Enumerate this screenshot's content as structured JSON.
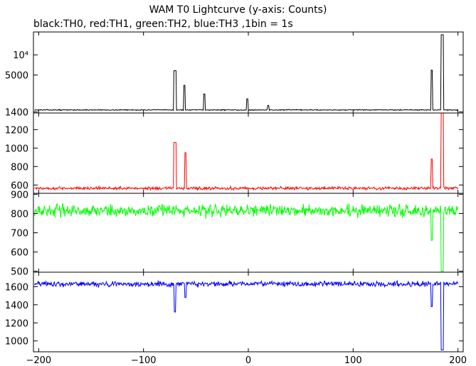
{
  "chart_data": {
    "title": "WAM T0 Lightcurve (y-axis: Counts)",
    "subtitle": "black:TH0, red:TH1, green:TH2, blue:TH3 ,1bin = 1s",
    "type": "line",
    "xlim": [
      -205,
      205
    ],
    "x_ticks": [
      -200,
      -100,
      0,
      100,
      200
    ],
    "x_tick_labels": [
      "−200",
      "−100",
      "0",
      "100",
      "200"
    ],
    "bin_seconds": 1,
    "grid": false,
    "panels": [
      {
        "series_name": "TH0",
        "color": "#000000",
        "yscale": "log",
        "ylim": [
          1350,
          22000
        ],
        "y_ticks": [
          1400,
          5000,
          10000
        ],
        "y_tick_labels": [
          "1400",
          "5000",
          "10⁴"
        ],
        "baseline": 1500,
        "noise": 20,
        "peaks": [
          {
            "x": -70,
            "y": 5800,
            "w": 2
          },
          {
            "x": -61,
            "y": 3500,
            "w": 1
          },
          {
            "x": -42,
            "y": 2600,
            "w": 1
          },
          {
            "x": -1,
            "y": 2200,
            "w": 1
          },
          {
            "x": 19,
            "y": 1750,
            "w": 1
          },
          {
            "x": 175,
            "y": 5900,
            "w": 1
          },
          {
            "x": 185,
            "y": 20000,
            "w": 2
          }
        ]
      },
      {
        "series_name": "TH1",
        "color": "#ff0000",
        "yscale": "linear",
        "ylim": [
          510,
          1380
        ],
        "y_ticks": [
          600,
          800,
          1000,
          1200
        ],
        "y_tick_labels": [
          "600",
          "800",
          "1000",
          "1200"
        ],
        "baseline": 565,
        "noise": 13,
        "peaks": [
          {
            "x": -70,
            "y": 1060,
            "w": 2
          },
          {
            "x": -60,
            "y": 950,
            "w": 1
          },
          {
            "x": 175,
            "y": 880,
            "w": 1
          },
          {
            "x": 185,
            "y": 1380,
            "w": 2
          }
        ]
      },
      {
        "series_name": "TH2",
        "color": "#00ff00",
        "yscale": "linear",
        "ylim": [
          495,
          905
        ],
        "y_ticks": [
          500,
          600,
          700,
          800,
          900
        ],
        "y_tick_labels": [
          "500",
          "600",
          "700",
          "800",
          "900"
        ],
        "baseline": 815,
        "noise": 25,
        "peaks": [
          {
            "x": 175,
            "y": 660,
            "w": 1
          },
          {
            "x": 185,
            "y": 500,
            "w": 2
          }
        ]
      },
      {
        "series_name": "TH3",
        "color": "#0000ff",
        "yscale": "linear",
        "ylim": [
          880,
          1760
        ],
        "y_ticks": [
          1000,
          1200,
          1400,
          1600
        ],
        "y_tick_labels": [
          "1000",
          "1200",
          "1400",
          "1600"
        ],
        "baseline": 1630,
        "noise": 24,
        "peaks": [
          {
            "x": -70,
            "y": 1320,
            "w": 1
          },
          {
            "x": -60,
            "y": 1480,
            "w": 1
          },
          {
            "x": 175,
            "y": 1380,
            "w": 1
          },
          {
            "x": 185,
            "y": 900,
            "w": 2
          }
        ]
      }
    ]
  }
}
